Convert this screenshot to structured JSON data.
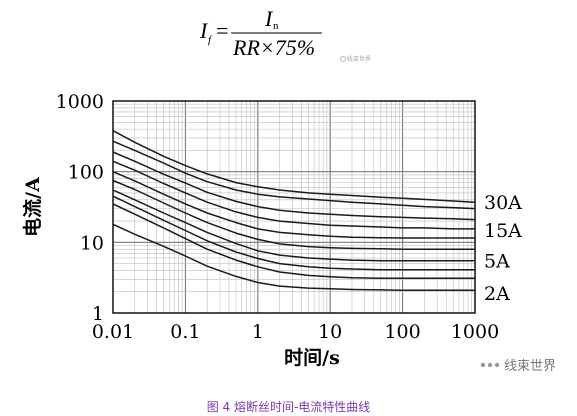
{
  "formula": {
    "lhs": "I",
    "lhs_sub": "f",
    "equals": "=",
    "numerator": "I",
    "numerator_sub": "n",
    "denominator": "RR×75%"
  },
  "watermark": {
    "small_text": "线束世界",
    "brand_text": "线束世界",
    "icon": "wechat-dots-icon"
  },
  "caption": "图 4 熔断丝时间-电流特性曲线",
  "chart_data": {
    "type": "line",
    "title": "",
    "xlabel": "时间/s",
    "ylabel": "电流/A",
    "xscale": "log",
    "yscale": "log",
    "xlim": [
      0.01,
      1000
    ],
    "ylim": [
      1,
      1000
    ],
    "grid": true,
    "x_ticks": [
      "0.01",
      "0.1",
      "1",
      "10",
      "100",
      "1000"
    ],
    "y_ticks": [
      "1",
      "10",
      "100",
      "1000"
    ],
    "curve_labels": [
      "30A",
      "15A",
      "5A",
      "2A"
    ],
    "x": [
      0.01,
      0.02,
      0.05,
      0.1,
      0.2,
      0.5,
      1,
      2,
      5,
      10,
      20,
      50,
      100,
      200,
      500,
      1000
    ],
    "series": [
      {
        "values": [
          380,
          260,
          165,
          122,
          93,
          70,
          61,
          55,
          50,
          48,
          46,
          43.5,
          42,
          40.5,
          38.5,
          37
        ]
      },
      {
        "values": [
          270,
          200,
          132,
          95,
          72,
          55,
          48,
          44,
          41,
          39,
          37,
          35,
          33.5,
          32,
          31,
          30
        ]
      },
      {
        "values": [
          190,
          140,
          92,
          69,
          51,
          38,
          32,
          28.5,
          26,
          25,
          24,
          23,
          22.5,
          22,
          21.5,
          21
        ]
      },
      {
        "values": [
          140,
          105,
          68,
          50,
          37,
          27,
          22.5,
          20,
          18.5,
          17.5,
          17,
          16.5,
          16,
          16,
          15.5,
          15.5
        ]
      },
      {
        "values": [
          100,
          74,
          48,
          35,
          26,
          19,
          15.5,
          13.8,
          12.8,
          12.2,
          11.8,
          11.6,
          11.5,
          11.5,
          11.5,
          11.5
        ]
      },
      {
        "values": [
          75,
          56,
          36,
          26,
          19,
          13.5,
          11,
          9.5,
          8.7,
          8.4,
          8.2,
          8.1,
          8,
          8,
          8,
          8
        ]
      },
      {
        "values": [
          55,
          40,
          26,
          19,
          13.8,
          9.6,
          7.6,
          6.6,
          6,
          5.8,
          5.6,
          5.5,
          5.5,
          5.5,
          5.5,
          5.5
        ]
      },
      {
        "values": [
          45,
          32,
          20.5,
          14.7,
          10.5,
          7.3,
          5.9,
          5,
          4.5,
          4.3,
          4.2,
          4.1,
          4.1,
          4.1,
          4.1,
          4.1
        ]
      },
      {
        "values": [
          35,
          25,
          16,
          11.3,
          8,
          5.6,
          4.5,
          3.8,
          3.4,
          3.25,
          3.15,
          3.1,
          3.1,
          3.1,
          3.1,
          3.1
        ]
      },
      {
        "values": [
          18,
          13,
          8.8,
          6.4,
          4.6,
          3.3,
          2.7,
          2.4,
          2.25,
          2.2,
          2.15,
          2.12,
          2.1,
          2.1,
          2.1,
          2.1
        ]
      }
    ]
  }
}
